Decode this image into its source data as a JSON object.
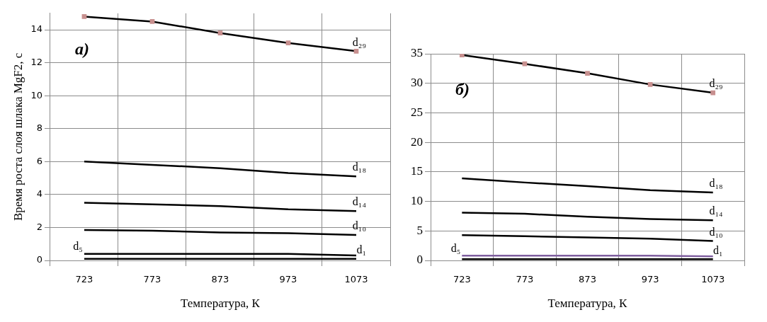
{
  "chart_data": [
    {
      "type": "line",
      "categories": [
        "723",
        "773",
        "873",
        "973",
        "1073"
      ],
      "xlabel": "Температура, К",
      "ylabel": "Время роста слоя шлака MgF2, с",
      "ylim": [
        0,
        15
      ],
      "yticks": [
        0,
        2,
        4,
        6,
        8,
        10,
        12,
        14
      ],
      "grid": true,
      "legend": false,
      "annotations": [
        "а)"
      ],
      "series": [
        {
          "name": "d₂₉",
          "color": "#000000",
          "marker": "square",
          "values": [
            14.8,
            14.5,
            13.8,
            13.2,
            12.7
          ]
        },
        {
          "name": "d₁₈",
          "color": "#000000",
          "values": [
            6.0,
            5.8,
            5.6,
            5.3,
            5.1
          ]
        },
        {
          "name": "d₁₄",
          "color": "#000000",
          "values": [
            3.5,
            3.4,
            3.3,
            3.1,
            3.0
          ]
        },
        {
          "name": "d₁₀",
          "color": "#000000",
          "values": [
            1.85,
            1.8,
            1.7,
            1.65,
            1.55
          ]
        },
        {
          "name": "d₅",
          "color": "#000000",
          "values": [
            0.4,
            0.4,
            0.4,
            0.4,
            0.3
          ]
        },
        {
          "name": "d₁",
          "color": "#000000",
          "values": [
            0.1,
            0.1,
            0.1,
            0.1,
            0.1
          ]
        }
      ]
    },
    {
      "type": "line",
      "categories": [
        "723",
        "773",
        "873",
        "973",
        "1073"
      ],
      "xlabel": "Температура, К",
      "ylim": [
        0,
        35
      ],
      "yticks": [
        0,
        5,
        10,
        15,
        20,
        25,
        30,
        35
      ],
      "grid": true,
      "legend": false,
      "annotations": [
        "б)"
      ],
      "series": [
        {
          "name": "d₂₉",
          "color": "#000000",
          "marker": "square",
          "values": [
            34.8,
            33.3,
            31.7,
            29.8,
            28.4
          ]
        },
        {
          "name": "d₁₈",
          "color": "#000000",
          "values": [
            13.9,
            13.2,
            12.6,
            11.9,
            11.5
          ]
        },
        {
          "name": "d₁₄",
          "color": "#000000",
          "values": [
            8.1,
            7.9,
            7.4,
            7.0,
            6.8
          ]
        },
        {
          "name": "d₁₀",
          "color": "#000000",
          "values": [
            4.3,
            4.1,
            3.9,
            3.7,
            3.3
          ]
        },
        {
          "name": "d₅",
          "color": "#7f5f9f",
          "values": [
            0.8,
            0.8,
            0.8,
            0.8,
            0.7
          ]
        },
        {
          "name": "d₁",
          "color": "#000000",
          "values": [
            0.2,
            0.2,
            0.2,
            0.2,
            0.2
          ]
        }
      ]
    }
  ]
}
